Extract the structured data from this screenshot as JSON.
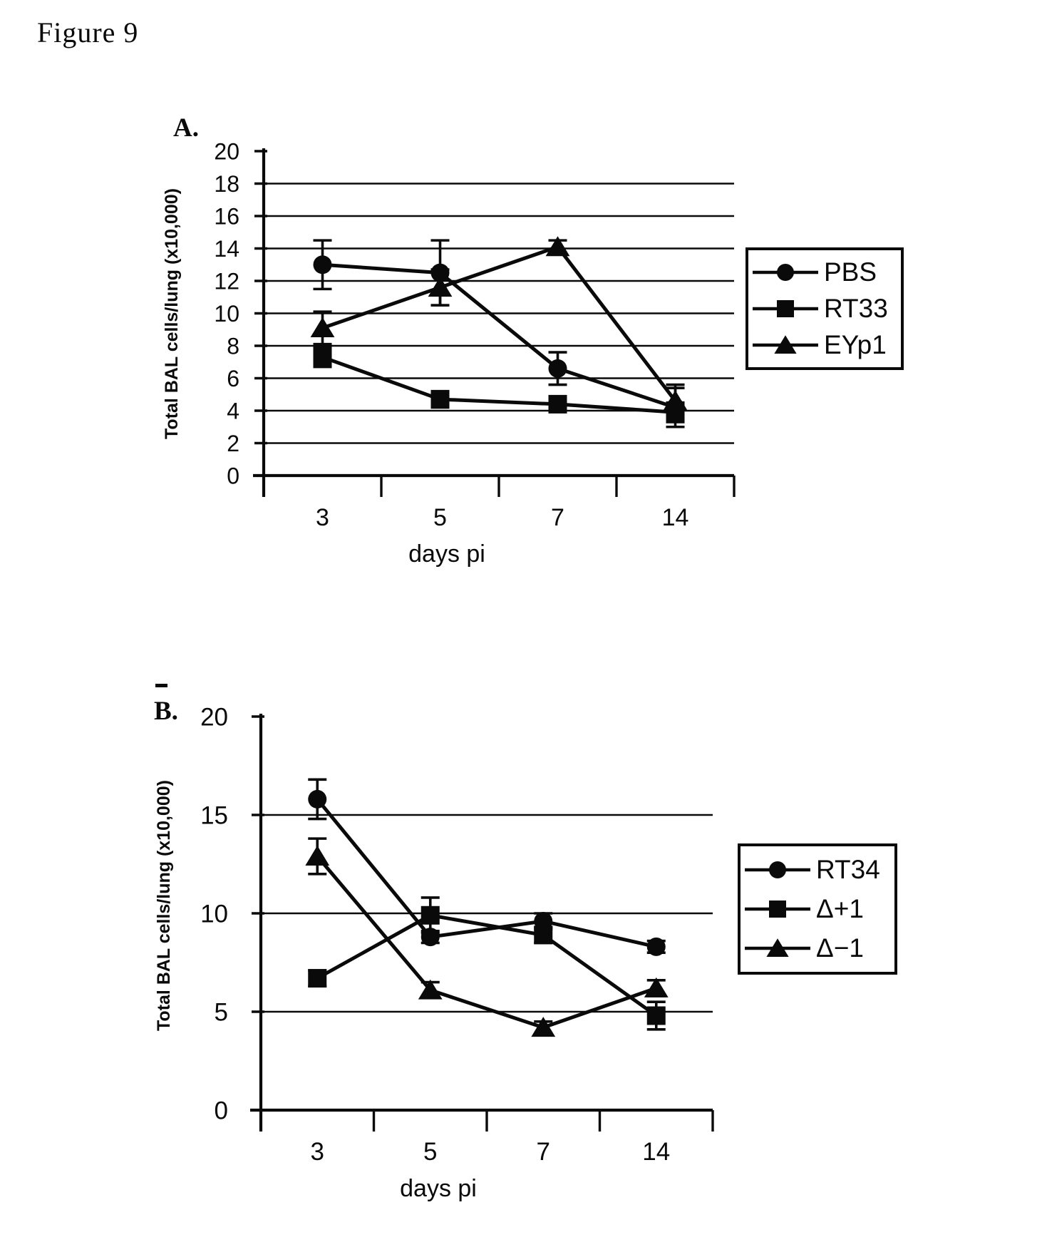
{
  "figure_title": "Figure 9",
  "ink_color": "#0a0a0a",
  "paper_color": "#ffffff",
  "chart_data": [
    {
      "panel_label": "A.",
      "type": "line",
      "xlabel": "days pi",
      "ylabel": "Total BAL cells/lung (x10,000)",
      "categories": [
        "3",
        "5",
        "7",
        "14"
      ],
      "ylim": [
        0,
        20
      ],
      "y_ticks": [
        0,
        2,
        4,
        6,
        8,
        10,
        12,
        14,
        16,
        18,
        20
      ],
      "gridlines": [
        2,
        4,
        6,
        8,
        10,
        12,
        14,
        16,
        18
      ],
      "grid": "horizontal",
      "legend_position": "right",
      "series": [
        {
          "name": "PBS",
          "marker": "circle",
          "values": [
            13.0,
            12.5,
            6.6,
            4.2
          ],
          "errors": [
            1.5,
            2.0,
            1.0,
            1.2
          ]
        },
        {
          "name": "RT33",
          "marker": "square",
          "values": [
            7.3,
            4.7,
            4.4,
            3.9
          ],
          "errors": [
            0.6,
            0.5,
            0.4,
            0.6
          ]
        },
        {
          "name": "EYp1",
          "marker": "triangle",
          "values": [
            9.1,
            11.6,
            14.1,
            4.6
          ],
          "errors": [
            1.0,
            1.1,
            0.4,
            1.0
          ]
        }
      ]
    },
    {
      "panel_label": "B.",
      "type": "line",
      "xlabel": "days pi",
      "ylabel": "Total BAL cells/lung (x10,000)",
      "categories": [
        "3",
        "5",
        "7",
        "14"
      ],
      "ylim": [
        0,
        20
      ],
      "y_ticks": [
        0,
        5,
        10,
        15,
        20
      ],
      "gridlines": [
        5,
        10,
        15
      ],
      "grid": "horizontal",
      "legend_position": "right",
      "series": [
        {
          "name": "RT34",
          "marker": "circle",
          "values": [
            15.8,
            8.8,
            9.6,
            8.3
          ],
          "errors": [
            1.0,
            0.3,
            0.4,
            0.3
          ]
        },
        {
          "name": "Δ+1",
          "marker": "square",
          "values": [
            6.7,
            9.9,
            8.9,
            4.8
          ],
          "errors": [
            0.4,
            0.9,
            0.4,
            0.7
          ]
        },
        {
          "name": "Δ−1",
          "marker": "triangle",
          "values": [
            12.9,
            6.1,
            4.2,
            6.2
          ],
          "errors": [
            0.9,
            0.4,
            0.3,
            0.4
          ]
        }
      ]
    }
  ]
}
